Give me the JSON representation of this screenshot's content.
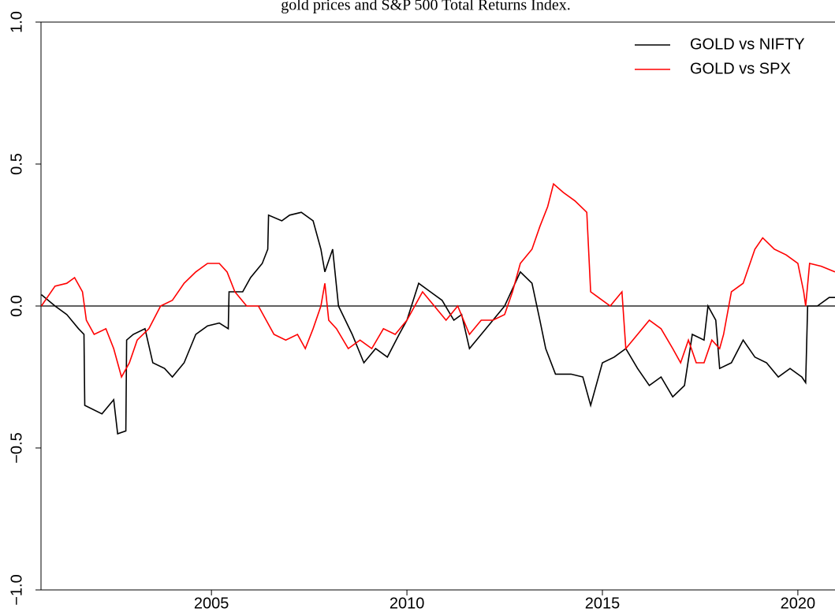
{
  "chart_data": {
    "type": "line",
    "title": "gold prices and S&P 500 Total Returns Index.",
    "xlim": [
      2000.64,
      2020.95
    ],
    "xticks": [
      2005,
      2010,
      2015,
      2020
    ],
    "ylim": [
      -1,
      1
    ],
    "yticks": [
      {
        "value": -1,
        "label": "−1.0"
      },
      {
        "value": -0.5,
        "label": "−0.5"
      },
      {
        "value": 0,
        "label": "0.0"
      },
      {
        "value": 0.5,
        "label": "0.5"
      },
      {
        "value": 1,
        "label": "1.0"
      }
    ],
    "hline": 0,
    "legend": "top-right",
    "series": [
      {
        "name": "GOLD vs NIFTY",
        "color": "#000000",
        "x": [
          2000.65,
          2001.0,
          2001.3,
          2001.6,
          2001.74,
          2001.76,
          2002.2,
          2002.5,
          2002.6,
          2002.81,
          2002.83,
          2003.0,
          2003.3,
          2003.5,
          2003.8,
          2004.0,
          2004.3,
          2004.6,
          2004.9,
          2005.2,
          2005.43,
          2005.45,
          2005.8,
          2006.0,
          2006.3,
          2006.44,
          2006.46,
          2006.8,
          2007.0,
          2007.3,
          2007.6,
          2007.8,
          2007.9,
          2008.1,
          2008.25,
          2008.6,
          2008.9,
          2009.2,
          2009.5,
          2009.8,
          2010.0,
          2010.3,
          2010.6,
          2010.9,
          2011.2,
          2011.4,
          2011.6,
          2011.9,
          2012.2,
          2012.5,
          2012.9,
          2013.2,
          2013.4,
          2013.55,
          2013.8,
          2014.2,
          2014.5,
          2014.7,
          2015.0,
          2015.3,
          2015.6,
          2015.9,
          2016.2,
          2016.5,
          2016.8,
          2017.1,
          2017.3,
          2017.6,
          2017.7,
          2017.9,
          2018.0,
          2018.3,
          2018.6,
          2018.9,
          2019.2,
          2019.5,
          2019.8,
          2020.1,
          2020.2,
          2020.25,
          2020.5,
          2020.8,
          2020.95
        ],
        "values": [
          0.04,
          0.0,
          -0.03,
          -0.08,
          -0.1,
          -0.35,
          -0.38,
          -0.33,
          -0.45,
          -0.44,
          -0.12,
          -0.1,
          -0.08,
          -0.2,
          -0.22,
          -0.25,
          -0.2,
          -0.1,
          -0.07,
          -0.06,
          -0.08,
          0.05,
          0.05,
          0.1,
          0.15,
          0.2,
          0.32,
          0.3,
          0.32,
          0.33,
          0.3,
          0.2,
          0.12,
          0.2,
          0.0,
          -0.1,
          -0.2,
          -0.15,
          -0.18,
          -0.1,
          -0.05,
          0.08,
          0.05,
          0.02,
          -0.05,
          -0.03,
          -0.15,
          -0.1,
          -0.05,
          0.0,
          0.12,
          0.08,
          -0.05,
          -0.15,
          -0.24,
          -0.24,
          -0.25,
          -0.35,
          -0.2,
          -0.18,
          -0.15,
          -0.22,
          -0.28,
          -0.25,
          -0.32,
          -0.28,
          -0.1,
          -0.12,
          0.0,
          -0.05,
          -0.22,
          -0.2,
          -0.12,
          -0.18,
          -0.2,
          -0.25,
          -0.22,
          -0.25,
          -0.27,
          0.0,
          0.0,
          0.03,
          0.03
        ]
      },
      {
        "name": "GOLD vs SPX",
        "color": "#ff0000",
        "x": [
          2000.65,
          2000.8,
          2001.0,
          2001.3,
          2001.5,
          2001.7,
          2001.8,
          2002.0,
          2002.3,
          2002.5,
          2002.7,
          2002.9,
          2003.1,
          2003.4,
          2003.7,
          2004.0,
          2004.3,
          2004.6,
          2004.9,
          2005.2,
          2005.4,
          2005.6,
          2005.9,
          2006.2,
          2006.4,
          2006.6,
          2006.9,
          2007.2,
          2007.4,
          2007.6,
          2007.8,
          2007.9,
          2008.0,
          2008.2,
          2008.5,
          2008.8,
          2009.1,
          2009.4,
          2009.7,
          2010.0,
          2010.2,
          2010.4,
          2010.7,
          2011.0,
          2011.3,
          2011.6,
          2011.9,
          2012.2,
          2012.5,
          2012.7,
          2012.9,
          2013.2,
          2013.4,
          2013.6,
          2013.75,
          2014.0,
          2014.3,
          2014.6,
          2014.7,
          2014.9,
          2015.2,
          2015.5,
          2015.6,
          2015.9,
          2016.2,
          2016.5,
          2016.8,
          2017.0,
          2017.2,
          2017.4,
          2017.6,
          2017.8,
          2018.0,
          2018.1,
          2018.3,
          2018.6,
          2018.9,
          2019.1,
          2019.4,
          2019.7,
          2020.0,
          2020.15,
          2020.2,
          2020.3,
          2020.6,
          2020.95
        ],
        "values": [
          0.0,
          0.03,
          0.07,
          0.08,
          0.1,
          0.05,
          -0.05,
          -0.1,
          -0.08,
          -0.15,
          -0.25,
          -0.2,
          -0.12,
          -0.08,
          0.0,
          0.02,
          0.08,
          0.12,
          0.15,
          0.15,
          0.12,
          0.05,
          0.0,
          0.0,
          -0.05,
          -0.1,
          -0.12,
          -0.1,
          -0.15,
          -0.08,
          0.0,
          0.08,
          -0.05,
          -0.08,
          -0.15,
          -0.12,
          -0.15,
          -0.08,
          -0.1,
          -0.05,
          0.0,
          0.05,
          0.0,
          -0.05,
          0.0,
          -0.1,
          -0.05,
          -0.05,
          -0.03,
          0.05,
          0.15,
          0.2,
          0.28,
          0.35,
          0.43,
          0.4,
          0.37,
          0.33,
          0.05,
          0.03,
          0.0,
          0.05,
          -0.15,
          -0.1,
          -0.05,
          -0.08,
          -0.15,
          -0.2,
          -0.12,
          -0.2,
          -0.2,
          -0.12,
          -0.15,
          -0.1,
          0.05,
          0.08,
          0.2,
          0.24,
          0.2,
          0.18,
          0.15,
          0.05,
          0.0,
          0.15,
          0.14,
          0.12
        ]
      }
    ]
  }
}
